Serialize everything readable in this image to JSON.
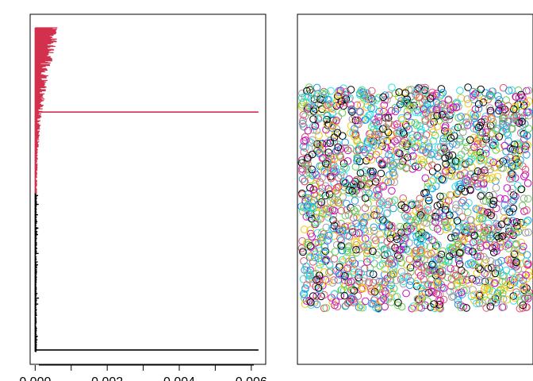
{
  "chart_data": [
    {
      "type": "line",
      "title": "",
      "xlabel": "",
      "ylabel": "",
      "x_ticks": [
        "0.000",
        "0.002",
        "0.004",
        "0.006"
      ],
      "x_tick_values": [
        0,
        0.002,
        0.004,
        0.006
      ],
      "xlim": [
        -0.00014,
        0.0064
      ],
      "ylim": [
        0,
        100
      ],
      "axes_visible": {
        "x": true,
        "y": false
      },
      "grid": false,
      "series": [
        {
          "color": "#000000",
          "description": "black bottom cluster: a spike at each y level, tiny x values, one long segment to x≈0.0062 at bottom",
          "y_range": [
            0,
            48
          ],
          "typical_x_max": 8e-05,
          "long_segment": {
            "y": 0.5,
            "x": 0.0062
          }
        },
        {
          "color": "#D2304D",
          "description": "red top cluster: spikes widening towards the top, one long segment to x≈0.0062",
          "y_range": [
            48,
            98
          ],
          "typical_x_max": 0.0006,
          "long_segment": {
            "y": 72.5,
            "x": 0.0062
          }
        }
      ]
    },
    {
      "type": "scatter",
      "title": "",
      "xlabel": "",
      "ylabel": "",
      "axes_visible": {
        "x": false,
        "y": false
      },
      "grid": false,
      "xlim": [
        0,
        1.2
      ],
      "ylim": [
        0,
        1.2
      ],
      "region": {
        "x": [
          0.02,
          1.18
        ],
        "y": [
          0.19,
          0.95
        ]
      },
      "hole": {
        "x": [
          0.495,
          0.645
        ],
        "y": [
          0.57,
          0.67
        ]
      },
      "marker": "open-circle",
      "series_colors": [
        "#000000",
        "#DF536B",
        "#61D04F",
        "#2297E6",
        "#28E2E5",
        "#CD0BBC",
        "#F5C710",
        "#9E9E9E"
      ]
    }
  ]
}
